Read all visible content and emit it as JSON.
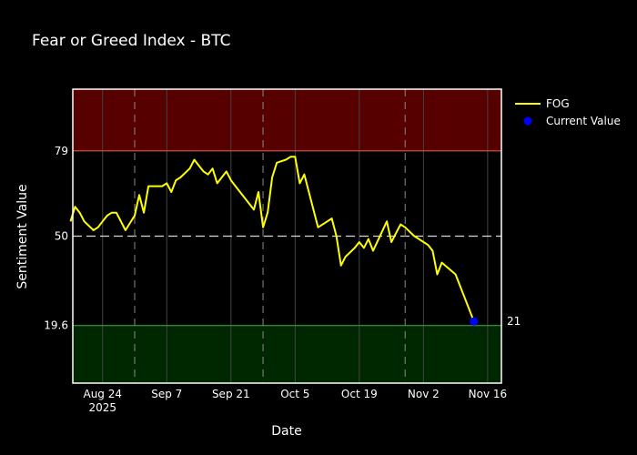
{
  "chart_data": {
    "type": "line",
    "title": "Fear or Greed Index - BTC",
    "xlabel": "Date",
    "ylabel": "Sentiment Value",
    "x_ticks": [
      {
        "date": "2025-08-24",
        "label": "Aug 24",
        "sublabel": "2025"
      },
      {
        "date": "2025-09-07",
        "label": "Sep 7",
        "sublabel": ""
      },
      {
        "date": "2025-09-21",
        "label": "Sep 21",
        "sublabel": ""
      },
      {
        "date": "2025-10-05",
        "label": "Oct 5",
        "sublabel": ""
      },
      {
        "date": "2025-10-19",
        "label": "Oct 19",
        "sublabel": ""
      },
      {
        "date": "2025-11-02",
        "label": "Nov 2",
        "sublabel": ""
      },
      {
        "date": "2025-11-16",
        "label": "Nov 16",
        "sublabel": ""
      }
    ],
    "y_ticks": [
      {
        "value": 19.6,
        "label": "19.6"
      },
      {
        "value": 50,
        "label": "50"
      },
      {
        "value": 79,
        "label": "79"
      }
    ],
    "xlim": [
      "2025-08-17T12:00",
      "2025-11-19T00:00"
    ],
    "ylim": [
      0,
      100
    ],
    "regions": [
      {
        "from": 79,
        "to": 100,
        "color": "#560000",
        "border": "#e05050"
      },
      {
        "from": 0,
        "to": 19.6,
        "color": "#002800",
        "border": "#3f9a3f"
      }
    ],
    "midline": {
      "value": 50,
      "color": "#d9d9d9"
    },
    "vlines": [
      "2025-08-31",
      "2025-09-28",
      "2025-10-29"
    ],
    "colors": {
      "line": "#ffff00",
      "marker": "#0000ff",
      "grid": "#444444",
      "background": "#000000"
    },
    "series": [
      {
        "name": "FOG",
        "x": [
          "2025-08-17",
          "2025-08-18",
          "2025-08-19",
          "2025-08-20",
          "2025-08-22",
          "2025-08-23",
          "2025-08-24",
          "2025-08-25",
          "2025-08-26",
          "2025-08-27",
          "2025-08-29",
          "2025-08-31",
          "2025-09-01",
          "2025-09-02",
          "2025-09-03",
          "2025-09-06",
          "2025-09-07",
          "2025-09-08",
          "2025-09-09",
          "2025-09-10",
          "2025-09-12",
          "2025-09-13",
          "2025-09-14",
          "2025-09-15",
          "2025-09-16",
          "2025-09-17",
          "2025-09-18",
          "2025-09-20",
          "2025-09-21",
          "2025-09-22",
          "2025-09-26",
          "2025-09-27",
          "2025-09-28",
          "2025-09-29",
          "2025-09-30",
          "2025-10-01",
          "2025-10-03",
          "2025-10-04",
          "2025-10-05",
          "2025-10-06",
          "2025-10-07",
          "2025-10-08",
          "2025-10-10",
          "2025-10-13",
          "2025-10-14",
          "2025-10-15",
          "2025-10-16",
          "2025-10-18",
          "2025-10-19",
          "2025-10-20",
          "2025-10-21",
          "2025-10-22",
          "2025-10-25",
          "2025-10-26",
          "2025-10-27",
          "2025-10-28",
          "2025-10-29",
          "2025-10-31",
          "2025-11-01",
          "2025-11-02",
          "2025-11-03",
          "2025-11-04",
          "2025-11-05",
          "2025-11-06",
          "2025-11-09",
          "2025-11-13"
        ],
        "y": [
          55,
          60,
          58,
          55,
          52,
          53,
          55,
          57,
          58,
          58,
          52,
          57,
          64,
          58,
          67,
          67,
          68,
          65,
          69,
          70,
          73,
          76,
          74,
          72,
          71,
          73,
          68,
          72,
          69,
          67,
          59,
          65,
          53,
          58,
          70,
          75,
          76,
          77,
          77,
          68,
          71,
          65,
          53,
          56,
          50,
          40,
          43,
          46,
          48,
          46,
          49,
          45,
          55,
          48,
          51,
          54,
          53,
          50,
          49,
          48,
          47,
          45,
          37,
          41,
          37,
          21
        ],
        "color": "#ffff00"
      }
    ],
    "current_value": {
      "name": "Current Value",
      "x": "2025-11-13",
      "y": 21,
      "label": "21",
      "color": "#0000ff"
    },
    "legend": {
      "placement": "top-right",
      "entries": [
        "FOG",
        "Current Value"
      ]
    },
    "grid": true
  }
}
